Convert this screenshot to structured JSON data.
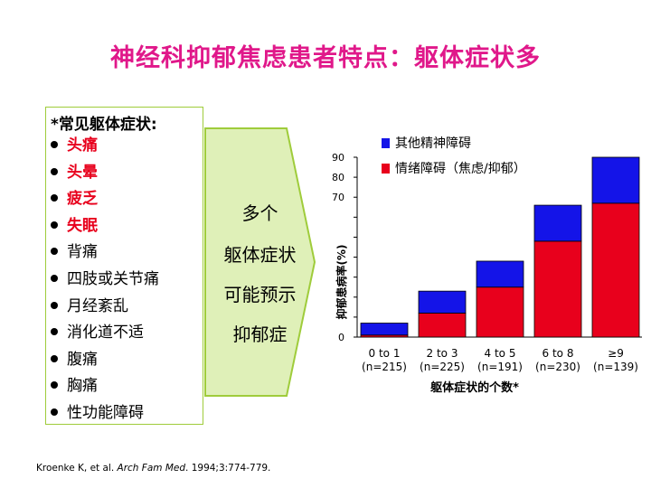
{
  "title": "神经科抑郁焦虑患者特点：躯体症状多",
  "symptoms_header": "*常见躯体症状:",
  "symptoms": [
    {
      "label": "头痛",
      "highlight": true
    },
    {
      "label": "头晕",
      "highlight": true
    },
    {
      "label": "疲乏",
      "highlight": true
    },
    {
      "label": "失眠",
      "highlight": true
    },
    {
      "label": "背痛",
      "highlight": false
    },
    {
      "label": "四肢或关节痛",
      "highlight": false
    },
    {
      "label": "月经紊乱",
      "highlight": false
    },
    {
      "label": "消化道不适",
      "highlight": false
    },
    {
      "label": "腹痛",
      "highlight": false
    },
    {
      "label": "胸痛",
      "highlight": false
    },
    {
      "label": "性功能障碍",
      "highlight": false
    }
  ],
  "arrow_text": {
    "line1": "多个",
    "line2": "躯体症状",
    "line3": "可能预示",
    "line4": "抑郁症"
  },
  "citation": {
    "authors": "Kroenke K, et al. ",
    "journal": "Arch Fam Med",
    "rest": ". 1994;3:774-779."
  },
  "colors": {
    "title": "#e0188a",
    "highlight_text": "#e8001c",
    "mood_series": "#e8001c",
    "other_series": "#1414e8",
    "arrow_fill": "#dff0b8",
    "arrow_stroke": "#9fcc3b"
  },
  "chart_data": {
    "type": "bar",
    "stacked": true,
    "ylabel": "抑郁患病率(%)",
    "xlabel": "躯体症状的个数*",
    "ylim": [
      0,
      90
    ],
    "yticks": [
      0,
      10,
      20,
      30,
      40,
      50,
      60,
      70,
      80,
      90
    ],
    "ytick_labels_visible": [
      "0",
      "70",
      "80",
      "90"
    ],
    "categories": [
      "0 to 1",
      "2 to 3",
      "4 to 5",
      "6 to 8",
      "≥9"
    ],
    "category_n": [
      "(n=215)",
      "(n=225)",
      "(n=191)",
      "(n=230)",
      "(n=139)"
    ],
    "legend_position": "top",
    "series": [
      {
        "name": "情绪障碍（焦虑/抑郁）",
        "values": [
          1,
          12,
          25,
          48,
          67
        ],
        "color": "#e8001c"
      },
      {
        "name": "其他精神障碍",
        "values": [
          6,
          11,
          13,
          18,
          23
        ],
        "color": "#1414e8"
      }
    ]
  }
}
